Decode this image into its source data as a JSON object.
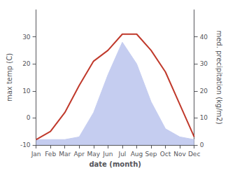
{
  "chart_data": {
    "type": "line",
    "categories": [
      "Jan",
      "Feb",
      "Mar",
      "Apr",
      "May",
      "Jun",
      "Jul",
      "Aug",
      "Sep",
      "Oct",
      "Nov",
      "Dec"
    ],
    "xlabel": "date (month)",
    "ylabel": "max temp (C)",
    "y2label": "med. precipitation (kg/m2)",
    "series": [
      {
        "type": "area",
        "axis": "y2",
        "color": "#c5cdf0",
        "values": [
          2,
          2,
          2,
          3,
          12,
          26,
          38,
          30,
          16,
          6,
          3,
          2
        ]
      },
      {
        "type": "line",
        "color": "#c0392b",
        "values": [
          -8,
          -5,
          2,
          12,
          21,
          25,
          31,
          31,
          25,
          17,
          5,
          -7
        ]
      }
    ],
    "ylim": [
      -10,
      40
    ],
    "yticks": [
      -10,
      0,
      10,
      20,
      30
    ],
    "y2lim": [
      0,
      50
    ],
    "y2ticks": [
      0,
      10,
      20,
      30,
      40
    ],
    "grid": false
  }
}
